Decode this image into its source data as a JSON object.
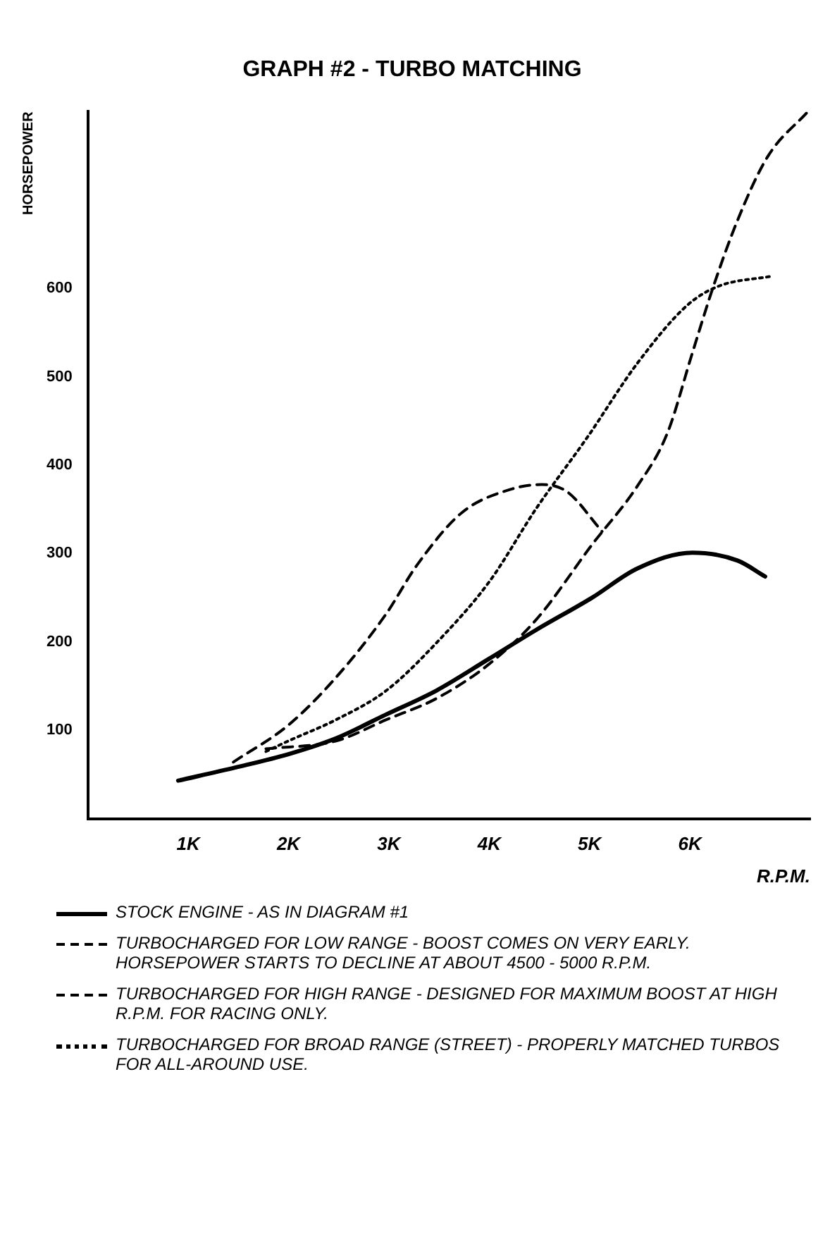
{
  "chart_data": {
    "type": "line",
    "title": "GRAPH #2 - TURBO MATCHING",
    "xlabel": "R.P.M.",
    "ylabel": "HORSEPOWER",
    "xlim": [
      0,
      7200
    ],
    "ylim": [
      0,
      800
    ],
    "xticks": [
      {
        "value": 1000,
        "label": "1K"
      },
      {
        "value": 2000,
        "label": "2K"
      },
      {
        "value": 3000,
        "label": "3K"
      },
      {
        "value": 4000,
        "label": "4K"
      },
      {
        "value": 5000,
        "label": "5K"
      },
      {
        "value": 6000,
        "label": "6K"
      }
    ],
    "yticks": [
      100,
      200,
      300,
      400,
      500,
      600
    ],
    "grid": false,
    "legend": "bottom",
    "marker": "none",
    "series": [
      {
        "name": "STOCK ENGINE - AS IN DIAGRAM #1",
        "color": "#000000",
        "line_style": "solid",
        "x": [
          900,
          1475,
          2000,
          2475,
          2975,
          3475,
          4000,
          4475,
          5025,
          5475,
          6025,
          6475,
          6750
        ],
        "values": [
          43,
          58,
          73,
          91,
          118,
          145,
          181,
          214,
          250,
          283,
          301,
          292,
          274
        ]
      },
      {
        "name": "TURBOCHARGED FOR LOW RANGE - BOOST COMES ON VERY EARLY. HORSEPOWER STARTS TO DECLINE AT ABOUT 4500 - 5000 R.P.M.",
        "color": "#000000",
        "line_style": "dashed",
        "x": [
          1450,
          2000,
          2475,
          2975,
          3275,
          3725,
          4225,
          4525,
          4775,
          5125
        ],
        "values": [
          64,
          106,
          160,
          232,
          286,
          346,
          373,
          378,
          370,
          325
        ]
      },
      {
        "name": "TURBOCHARGED FOR HIGH RANGE - DESIGNED FOR MAXIMUM BOOST AT HIGH R.P.M. FOR RACING ONLY.",
        "color": "#000000",
        "line_style": "dashed",
        "x": [
          1775,
          2475,
          2975,
          3475,
          4000,
          4475,
          5025,
          5475,
          5775,
          6025,
          6225,
          6475,
          6775,
          7175
        ],
        "values": [
          79,
          88,
          112,
          136,
          175,
          226,
          310,
          376,
          436,
          527,
          599,
          677,
          749,
          800
        ]
      },
      {
        "name": "TURBOCHARGED FOR BROAD RANGE (STREET) - PROPERLY MATCHED TURBOS FOR ALL-AROUND USE.",
        "color": "#000000",
        "line_style": "dotted",
        "x": [
          1775,
          2000,
          2475,
          2975,
          3475,
          4000,
          4475,
          4975,
          5475,
          5975,
          6275,
          6825
        ],
        "values": [
          76,
          88,
          112,
          145,
          199,
          268,
          352,
          431,
          515,
          581,
          602,
          614
        ]
      }
    ]
  }
}
